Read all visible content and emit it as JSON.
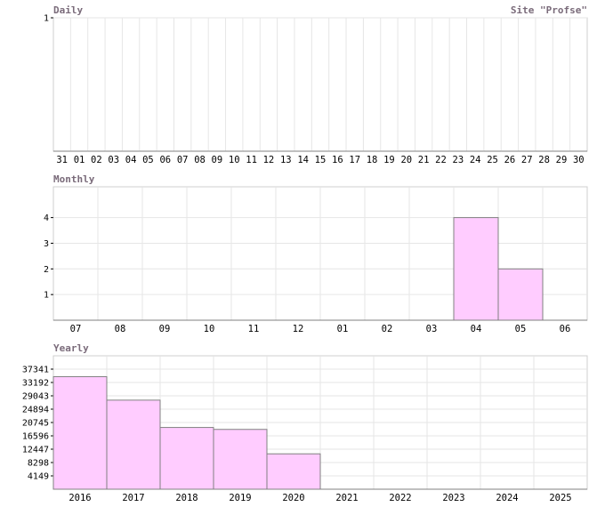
{
  "site_label": "Site \"Profse\"",
  "colors": {
    "bar_fill": "#ffccff",
    "bar_stroke": "#808080",
    "grid": "#e6e6e6",
    "frame": "#cfcfcf",
    "title": "#7a6b7a"
  },
  "chart_data": [
    {
      "type": "bar",
      "title": "Daily",
      "categories": [
        "31",
        "01",
        "02",
        "03",
        "04",
        "05",
        "06",
        "07",
        "08",
        "09",
        "10",
        "11",
        "12",
        "13",
        "14",
        "15",
        "16",
        "17",
        "18",
        "19",
        "20",
        "21",
        "22",
        "23",
        "24",
        "25",
        "26",
        "27",
        "28",
        "29",
        "30"
      ],
      "values": [
        0,
        0,
        0,
        0,
        0,
        0,
        0,
        0,
        0,
        0,
        0,
        0,
        0,
        0,
        0,
        0,
        0,
        0,
        0,
        0,
        0,
        0,
        0,
        0,
        0,
        0,
        0,
        0,
        0,
        0,
        0
      ],
      "yticks": [
        "1"
      ],
      "ylim": [
        0,
        1
      ],
      "grid": true
    },
    {
      "type": "bar",
      "title": "Monthly",
      "categories": [
        "07",
        "08",
        "09",
        "10",
        "11",
        "12",
        "01",
        "02",
        "03",
        "04",
        "05",
        "06"
      ],
      "values": [
        0,
        0,
        0,
        0,
        0,
        0,
        0,
        0,
        0,
        4,
        2,
        0
      ],
      "yticks": [
        "1",
        "2",
        "3",
        "4"
      ],
      "ylim": [
        0,
        5.2
      ],
      "grid": true
    },
    {
      "type": "bar",
      "title": "Yearly",
      "categories": [
        "2016",
        "2017",
        "2018",
        "2019",
        "2020",
        "2021",
        "2022",
        "2023",
        "2024",
        "2025"
      ],
      "values": [
        35000,
        27700,
        19200,
        18600,
        11000,
        0,
        0,
        0,
        0,
        0
      ],
      "yticks": [
        "4149",
        "8298",
        "12447",
        "16596",
        "20745",
        "24894",
        "29043",
        "33192",
        "37341"
      ],
      "ylim": [
        0,
        41490
      ],
      "grid": true
    }
  ]
}
